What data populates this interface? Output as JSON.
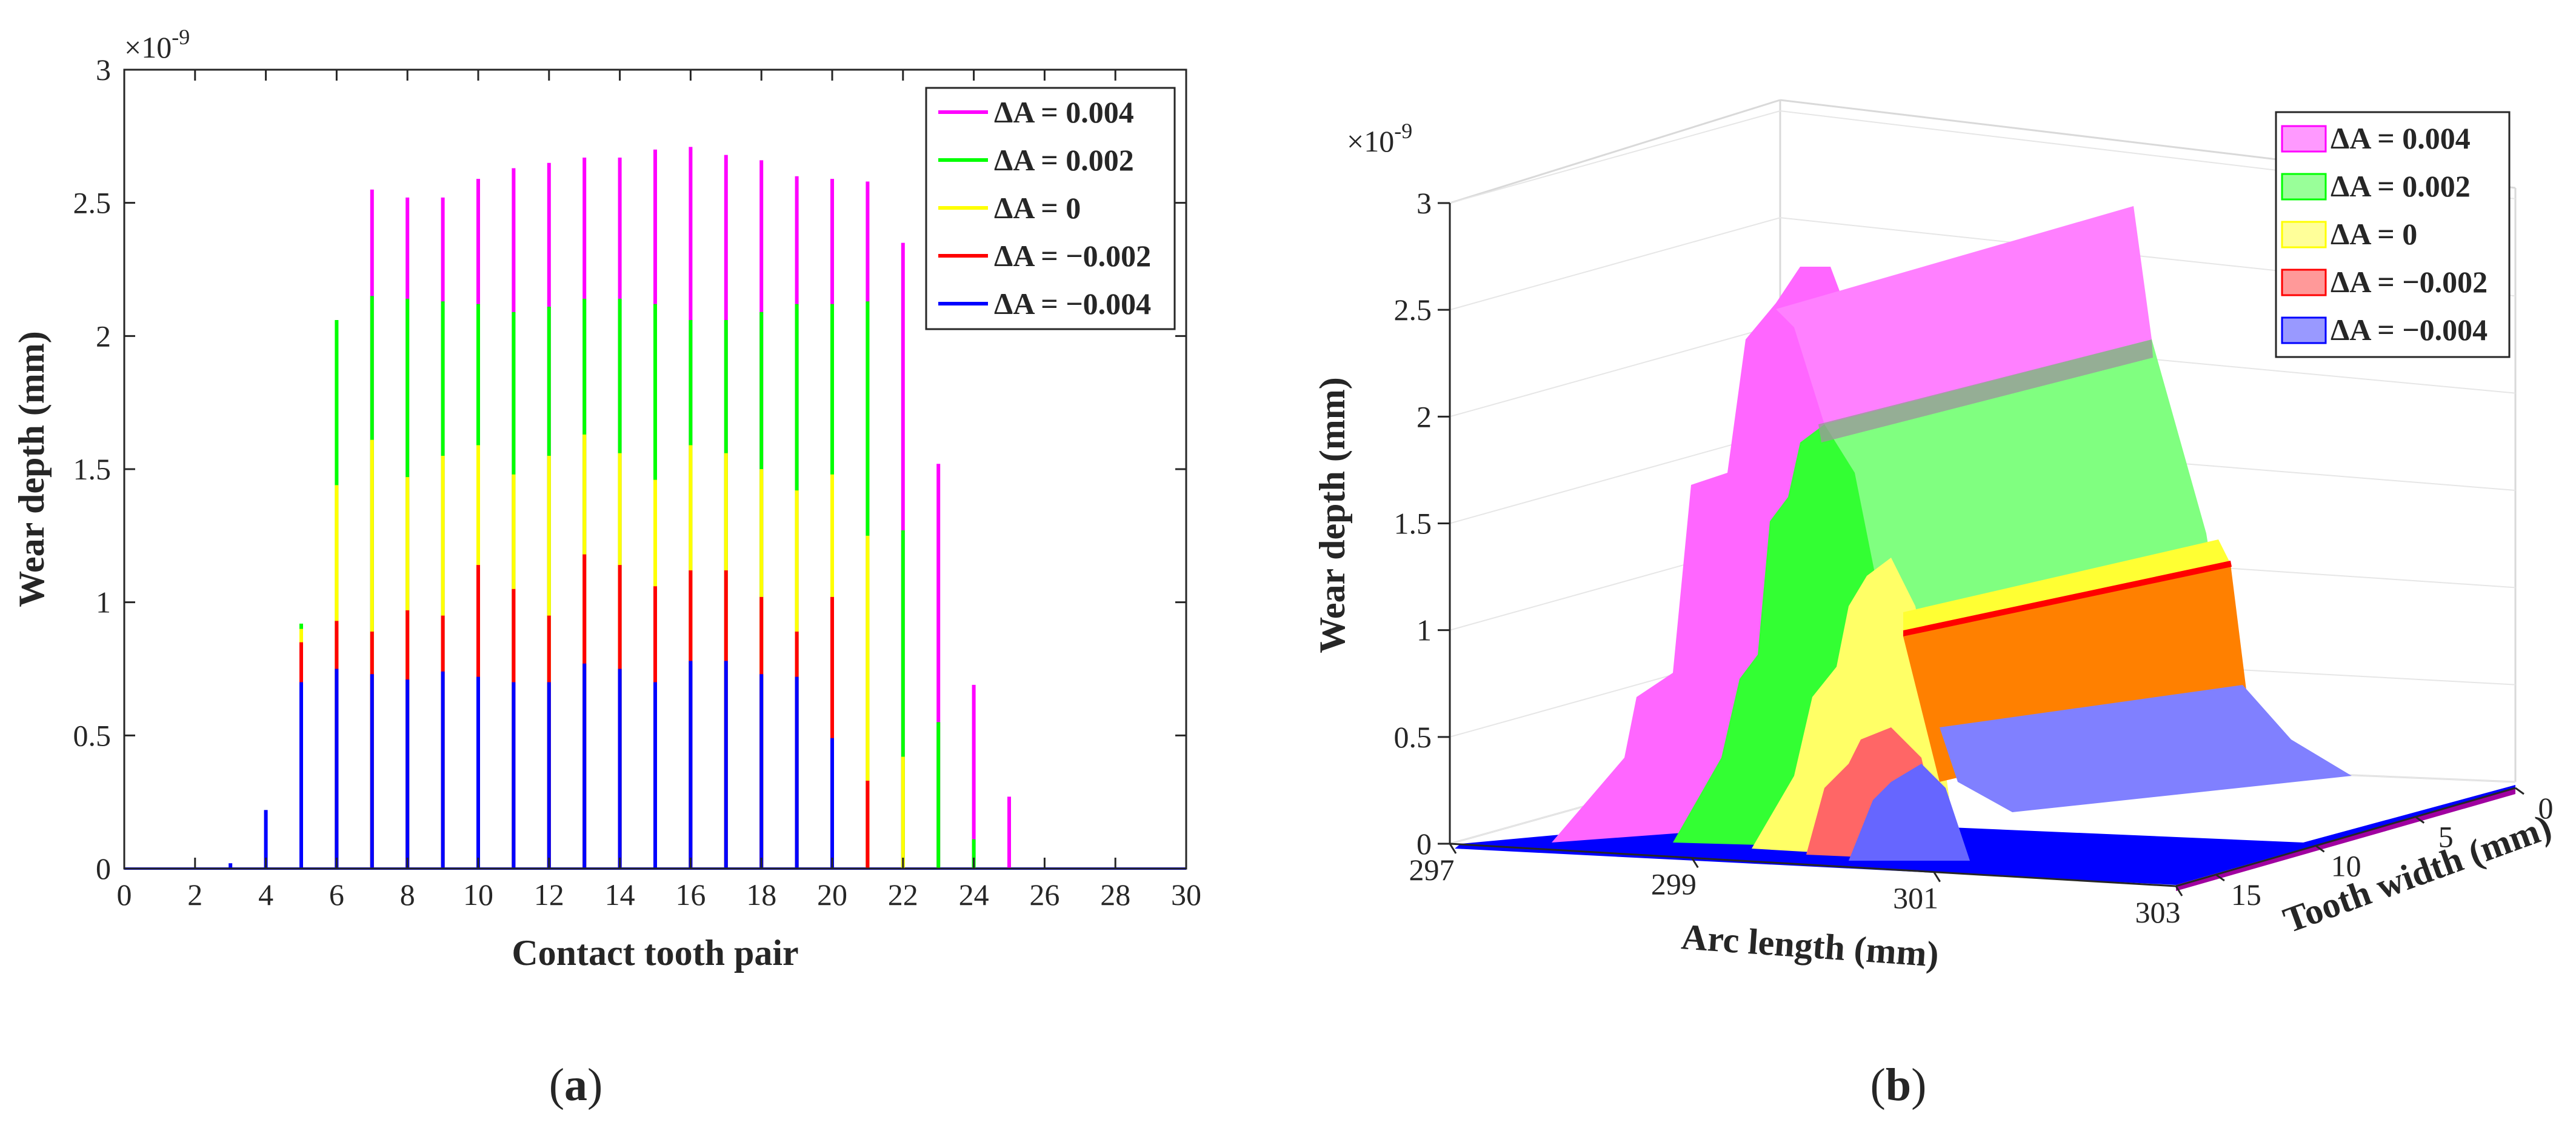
{
  "panels": {
    "a": {
      "caption_open": "(",
      "caption_letter": "a",
      "caption_close": ")"
    },
    "b": {
      "caption_open": "(",
      "caption_letter": "b",
      "caption_close": ")"
    }
  },
  "chart_data": [
    {
      "id": "a",
      "type": "line",
      "title": "",
      "xlabel": "Contact tooth pair",
      "ylabel": "Wear depth (mm)",
      "y_exponent_label": "×10",
      "y_exponent_power": "-9",
      "xlim": [
        0,
        30
      ],
      "ylim": [
        0,
        3
      ],
      "xticks": [
        "0",
        "2",
        "4",
        "6",
        "8",
        "10",
        "12",
        "14",
        "16",
        "18",
        "20",
        "22",
        "24",
        "26",
        "28",
        "30"
      ],
      "yticks": [
        "0",
        "0.5",
        "1",
        "1.5",
        "2",
        "2.5",
        "3"
      ],
      "legend_position": "top-right",
      "colors": {
        "pink": "#ff00ff",
        "green": "#00ff00",
        "yellow": "#ffff00",
        "red": "#ff0000",
        "blue": "#0000ff"
      },
      "series": [
        {
          "name": "ΔA = 0.004",
          "color": "#ff00ff",
          "x": [
            4,
            5,
            6,
            7,
            8,
            9,
            10,
            11,
            12,
            13,
            14,
            15,
            16,
            17,
            18,
            19,
            20,
            21,
            22,
            23,
            24,
            25,
            26
          ],
          "values": [
            0,
            0,
            0,
            2.55,
            2.52,
            2.52,
            2.59,
            2.63,
            2.65,
            2.67,
            2.67,
            2.7,
            2.71,
            2.68,
            2.66,
            2.6,
            2.59,
            2.58,
            2.35,
            1.52,
            0.69,
            0.27,
            0
          ]
        },
        {
          "name": "ΔA = 0.002",
          "color": "#00ff00",
          "x": [
            4,
            5,
            6,
            7,
            8,
            9,
            10,
            11,
            12,
            13,
            14,
            15,
            16,
            17,
            18,
            19,
            20,
            21,
            22,
            23,
            24,
            25,
            26
          ],
          "values": [
            0,
            0.92,
            2.06,
            2.15,
            2.14,
            2.13,
            2.12,
            2.09,
            2.11,
            2.14,
            2.14,
            2.12,
            2.06,
            2.06,
            2.09,
            2.12,
            2.12,
            2.13,
            1.27,
            0.55,
            0.11,
            0,
            0
          ]
        },
        {
          "name": "ΔA = 0",
          "color": "#ffff00",
          "x": [
            4,
            5,
            6,
            7,
            8,
            9,
            10,
            11,
            12,
            13,
            14,
            15,
            16,
            17,
            18,
            19,
            20,
            21,
            22,
            23,
            24,
            25,
            26
          ],
          "values": [
            0,
            0.9,
            1.44,
            1.61,
            1.47,
            1.55,
            1.59,
            1.48,
            1.55,
            1.63,
            1.56,
            1.46,
            1.59,
            1.56,
            1.5,
            1.42,
            1.48,
            1.25,
            0.42,
            0,
            0,
            0,
            0
          ]
        },
        {
          "name": "ΔA = −0.002",
          "color": "#ff0000",
          "x": [
            4,
            5,
            6,
            7,
            8,
            9,
            10,
            11,
            12,
            13,
            14,
            15,
            16,
            17,
            18,
            19,
            20,
            21,
            22,
            23,
            24,
            25,
            26
          ],
          "values": [
            0,
            0.85,
            0.93,
            0.89,
            0.97,
            0.95,
            1.14,
            1.05,
            0.95,
            1.18,
            1.14,
            1.06,
            1.12,
            1.12,
            1.02,
            0.89,
            1.02,
            0.33,
            0,
            0,
            0,
            0,
            0
          ]
        },
        {
          "name": "ΔA = −0.004",
          "color": "#0000ff",
          "x": [
            3,
            4,
            5,
            6,
            7,
            8,
            9,
            10,
            11,
            12,
            13,
            14,
            15,
            16,
            17,
            18,
            19,
            20,
            21,
            22,
            23,
            24,
            25,
            26
          ],
          "values": [
            0.02,
            0.22,
            0.7,
            0.75,
            0.73,
            0.71,
            0.74,
            0.72,
            0.7,
            0.7,
            0.77,
            0.75,
            0.7,
            0.78,
            0.78,
            0.73,
            0.72,
            0.49,
            0,
            0,
            0,
            0,
            0,
            0
          ]
        }
      ]
    },
    {
      "id": "b",
      "type": "area",
      "title": "",
      "xlabel": "Arc length (mm)",
      "ylabel": "Tooth width (mm)",
      "zlabel": "Wear depth (mm)",
      "z_exponent_label": "×10",
      "z_exponent_power": "-9",
      "xlim": [
        297,
        303
      ],
      "ylim": [
        0,
        17
      ],
      "zlim": [
        0,
        3
      ],
      "xticks": [
        "297",
        "299",
        "301",
        "303"
      ],
      "yticks": [
        "0",
        "5",
        "10",
        "15"
      ],
      "zticks": [
        "0",
        "0.5",
        "1",
        "1.5",
        "2",
        "2.5",
        "3"
      ],
      "legend_position": "top-right",
      "series": [
        {
          "name": "ΔA = 0.004",
          "color": "#ff00ff",
          "peak": 2.7
        },
        {
          "name": "ΔA = 0.002",
          "color": "#00ff00",
          "peak": 2.15
        },
        {
          "name": "ΔA = 0",
          "color": "#ffff00",
          "peak": 1.6
        },
        {
          "name": "ΔA = −0.002",
          "color": "#ff0000",
          "peak": 1.15
        },
        {
          "name": "ΔA = −0.004",
          "color": "#0000ff",
          "peak": 0.75
        }
      ],
      "body_colors": {
        "pink": "#ff80ff",
        "green": "#80ff80",
        "yellow": "#ffff80",
        "orange": "#ff8000",
        "blue": "#8080ff",
        "base_blue": "#0000ff"
      }
    }
  ]
}
